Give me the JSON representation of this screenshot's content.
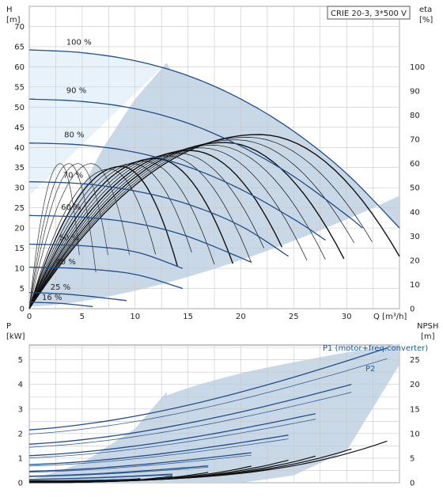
{
  "chart_data": [
    {
      "type": "line",
      "title": "CRIE 20-3, 3*500 V",
      "xlabel": "Q [m³/h]",
      "ylabel_left_name": "H",
      "ylabel_left_unit": "[m]",
      "ylabel_right_name": "eta",
      "ylabel_right_unit": "[%]",
      "xlim": [
        0,
        35
      ],
      "ylim": [
        0,
        75
      ],
      "ylim_right": [
        0,
        125
      ],
      "x_ticks": [
        "0",
        "5",
        "10",
        "15",
        "20",
        "25",
        "30"
      ],
      "y_ticks": [
        "0",
        "5",
        "10",
        "15",
        "20",
        "25",
        "30",
        "35",
        "40",
        "45",
        "50",
        "55",
        "60",
        "65",
        "70"
      ],
      "y_ticks_right": [
        "0",
        "10",
        "20",
        "30",
        "40",
        "50",
        "60",
        "70",
        "80",
        "90",
        "100"
      ],
      "grid": true,
      "legend": "none",
      "colors": {
        "hq_curve": "#1f4e8c",
        "eta_curve": "#111111",
        "fill_operating_area": "#c9d8e6",
        "fill_light": "#e8f2fb"
      },
      "series": [
        {
          "name": "100 %",
          "x": [
            0,
            5,
            10,
            15,
            20,
            25,
            30,
            35
          ],
          "values": [
            64.2,
            63.5,
            61.5,
            57.8,
            52.0,
            44.0,
            33.5,
            20.0
          ]
        },
        {
          "name": "90 %",
          "x": [
            0,
            5,
            10,
            15,
            20,
            25,
            30,
            31.5
          ],
          "values": [
            52.0,
            51.4,
            49.6,
            46.0,
            40.3,
            32.8,
            23.2,
            20.0
          ]
        },
        {
          "name": "80 %",
          "x": [
            0,
            5,
            10,
            15,
            20,
            25,
            28
          ],
          "values": [
            41.1,
            40.6,
            38.8,
            35.2,
            29.6,
            22.2,
            17.0
          ]
        },
        {
          "name": "70 %",
          "x": [
            0,
            5,
            10,
            15,
            20,
            24.5
          ],
          "values": [
            31.5,
            31.0,
            29.2,
            25.9,
            20.5,
            13.0
          ]
        },
        {
          "name": "60 %",
          "x": [
            0,
            5,
            10,
            15,
            21
          ],
          "values": [
            23.1,
            22.7,
            21.2,
            17.9,
            11.5
          ]
        },
        {
          "name": "50 %",
          "x": [
            0,
            5,
            10,
            14.5
          ],
          "values": [
            16.0,
            15.6,
            14.1,
            10.0
          ]
        },
        {
          "name": "40 %",
          "x": [
            0,
            5,
            10,
            14.5
          ],
          "values": [
            10.3,
            9.9,
            8.5,
            5.0
          ]
        },
        {
          "name": "25 %",
          "x": [
            0,
            4,
            9.2
          ],
          "values": [
            4.0,
            3.5,
            2.0
          ]
        },
        {
          "name": "16 %",
          "x": [
            0,
            3,
            6
          ],
          "values": [
            1.6,
            1.3,
            0.5
          ]
        }
      ]
    },
    {
      "type": "line",
      "title": "",
      "xlabel": "",
      "ylabel_left_name": "P",
      "ylabel_left_unit": "[kW]",
      "ylabel_right_name": "NPSH",
      "ylabel_right_unit": "[m]",
      "xlim": [
        0,
        35
      ],
      "ylim": [
        0,
        5.6
      ],
      "ylim_right": [
        0,
        28
      ],
      "y_ticks": [
        "0",
        "1",
        "2",
        "3",
        "4",
        "5"
      ],
      "y_ticks_right": [
        "0",
        "5",
        "10",
        "15",
        "20",
        "25"
      ],
      "grid": true,
      "legend": "none",
      "annotations": [
        "P1 (motor+freq.converter)",
        "P2"
      ],
      "series": [
        {
          "name": "P1 (motor+freq.converter)",
          "x": [
            0,
            5,
            10,
            15,
            20,
            25,
            30,
            35
          ],
          "values": [
            2.15,
            2.55,
            3.1,
            3.85,
            4.45,
            4.9,
            5.3,
            5.65
          ]
        },
        {
          "name": "P2",
          "x": [
            0,
            5,
            10,
            15,
            20,
            25,
            30,
            35
          ],
          "values": [
            1.9,
            2.25,
            2.8,
            3.5,
            4.1,
            4.55,
            4.95,
            5.25
          ]
        }
      ]
    }
  ]
}
